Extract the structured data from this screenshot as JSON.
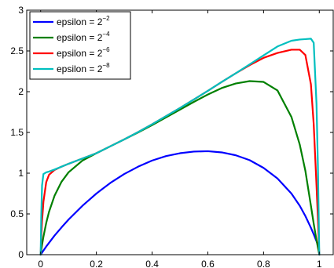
{
  "chart_data": {
    "type": "line",
    "title": "",
    "xlabel": "",
    "ylabel": "",
    "xlim": [
      -0.05,
      1.05
    ],
    "ylim": [
      0,
      3
    ],
    "grid": false,
    "legend_position": "top-left",
    "x_ticks": [
      "0",
      "0.2",
      "0.4",
      "0.6",
      "0.8",
      "1"
    ],
    "x_tick_values": [
      0,
      0.2,
      0.4,
      0.6,
      0.8,
      1
    ],
    "y_ticks": [
      "0",
      "0.5",
      "1",
      "1.5",
      "2",
      "2.5",
      "3"
    ],
    "y_tick_values": [
      0,
      0.5,
      1,
      1.5,
      2,
      2.5,
      3
    ],
    "x": [
      0,
      0.002,
      0.005,
      0.01,
      0.02,
      0.03,
      0.05,
      0.075,
      0.1,
      0.15,
      0.2,
      0.25,
      0.3,
      0.35,
      0.4,
      0.45,
      0.5,
      0.55,
      0.6,
      0.65,
      0.7,
      0.75,
      0.8,
      0.85,
      0.9,
      0.93,
      0.95,
      0.97,
      0.98,
      0.99,
      0.995,
      0.998,
      1
    ],
    "series": [
      {
        "legend_base": "epsilon = 2",
        "legend_exp": "−2",
        "color": "#0000ff",
        "values": [
          0,
          0.01,
          0.025,
          0.05,
          0.1,
          0.145,
          0.235,
          0.335,
          0.43,
          0.6,
          0.75,
          0.88,
          0.99,
          1.08,
          1.155,
          1.21,
          1.245,
          1.265,
          1.27,
          1.255,
          1.22,
          1.16,
          1.065,
          0.935,
          0.75,
          0.6,
          0.475,
          0.33,
          0.25,
          0.165,
          0.12,
          0.09,
          0
        ]
      },
      {
        "legend_base": "epsilon = 2",
        "legend_exp": "−4",
        "color": "#008000",
        "values": [
          0,
          0.05,
          0.12,
          0.22,
          0.39,
          0.525,
          0.725,
          0.895,
          1.01,
          1.155,
          1.245,
          1.33,
          1.415,
          1.5,
          1.59,
          1.685,
          1.78,
          1.875,
          1.965,
          2.045,
          2.1,
          2.13,
          2.12,
          2.015,
          1.69,
          1.35,
          1.03,
          0.6,
          0.38,
          0.18,
          0.09,
          0.04,
          0
        ]
      },
      {
        "legend_base": "epsilon = 2",
        "legend_exp": "−6",
        "color": "#ff0000",
        "values": [
          0,
          0.2,
          0.41,
          0.65,
          0.89,
          0.98,
          1.04,
          1.08,
          1.115,
          1.18,
          1.245,
          1.33,
          1.415,
          1.505,
          1.6,
          1.7,
          1.8,
          1.905,
          2.01,
          2.12,
          2.225,
          2.325,
          2.415,
          2.475,
          2.515,
          2.515,
          2.45,
          2.09,
          1.6,
          0.85,
          0.45,
          0.18,
          0
        ]
      },
      {
        "legend_base": "epsilon = 2",
        "legend_exp": "−8",
        "color": "#00bfbf",
        "values": [
          0,
          0.45,
          0.85,
          0.99,
          1.01,
          1.02,
          1.045,
          1.08,
          1.115,
          1.18,
          1.245,
          1.33,
          1.415,
          1.505,
          1.6,
          1.7,
          1.8,
          1.905,
          2.01,
          2.12,
          2.225,
          2.335,
          2.445,
          2.555,
          2.625,
          2.64,
          2.645,
          2.65,
          2.6,
          1.85,
          1.1,
          0.45,
          0
        ]
      }
    ]
  }
}
